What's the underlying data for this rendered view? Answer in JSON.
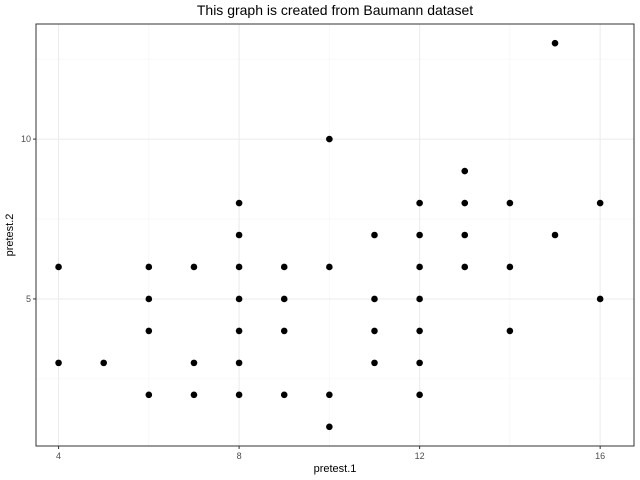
{
  "chart_data": {
    "type": "scatter",
    "title": "This graph is created from Baumann dataset",
    "xlabel": "pretest.1",
    "ylabel": "pretest.2",
    "xlim": [
      3.5,
      16.75
    ],
    "ylim": [
      0.4,
      13.6
    ],
    "x_ticks": [
      4,
      8,
      12,
      16
    ],
    "y_ticks": [
      5,
      10
    ],
    "x_minor_ticks": [
      6,
      10,
      14
    ],
    "y_minor_ticks": [
      2.5,
      7.5,
      12.5
    ],
    "grid": true,
    "marker_color": "#000000",
    "points": [
      {
        "x": 4,
        "y": 6
      },
      {
        "x": 4,
        "y": 3
      },
      {
        "x": 5,
        "y": 3
      },
      {
        "x": 6,
        "y": 6
      },
      {
        "x": 6,
        "y": 5
      },
      {
        "x": 6,
        "y": 4
      },
      {
        "x": 6,
        "y": 2
      },
      {
        "x": 7,
        "y": 6
      },
      {
        "x": 7,
        "y": 3
      },
      {
        "x": 7,
        "y": 2
      },
      {
        "x": 8,
        "y": 8
      },
      {
        "x": 8,
        "y": 7
      },
      {
        "x": 8,
        "y": 6
      },
      {
        "x": 8,
        "y": 5
      },
      {
        "x": 8,
        "y": 4
      },
      {
        "x": 8,
        "y": 3
      },
      {
        "x": 8,
        "y": 2
      },
      {
        "x": 9,
        "y": 6
      },
      {
        "x": 9,
        "y": 5
      },
      {
        "x": 9,
        "y": 4
      },
      {
        "x": 9,
        "y": 2
      },
      {
        "x": 10,
        "y": 10
      },
      {
        "x": 10,
        "y": 6
      },
      {
        "x": 10,
        "y": 2
      },
      {
        "x": 10,
        "y": 1
      },
      {
        "x": 11,
        "y": 7
      },
      {
        "x": 11,
        "y": 5
      },
      {
        "x": 11,
        "y": 4
      },
      {
        "x": 11,
        "y": 3
      },
      {
        "x": 12,
        "y": 8
      },
      {
        "x": 12,
        "y": 7
      },
      {
        "x": 12,
        "y": 6
      },
      {
        "x": 12,
        "y": 5
      },
      {
        "x": 12,
        "y": 4
      },
      {
        "x": 12,
        "y": 3
      },
      {
        "x": 12,
        "y": 2
      },
      {
        "x": 13,
        "y": 9
      },
      {
        "x": 13,
        "y": 8
      },
      {
        "x": 13,
        "y": 7
      },
      {
        "x": 13,
        "y": 6
      },
      {
        "x": 14,
        "y": 8
      },
      {
        "x": 14,
        "y": 6
      },
      {
        "x": 14,
        "y": 4
      },
      {
        "x": 15,
        "y": 13
      },
      {
        "x": 15,
        "y": 7
      },
      {
        "x": 16,
        "y": 8
      },
      {
        "x": 16,
        "y": 5
      }
    ]
  }
}
